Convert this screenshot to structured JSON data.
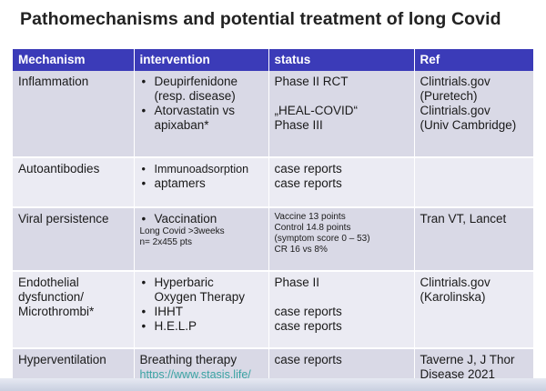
{
  "title": "Pathomechanisms and potential treatment of long Covid",
  "headers": [
    "Mechanism",
    "intervention",
    "status",
    "Ref"
  ],
  "rows": [
    {
      "mechanism": [
        "Inflammation"
      ],
      "interventions": [
        {
          "lines": [
            "Deupirfenidone",
            "(resp. disease)"
          ]
        },
        {
          "lines": [
            "Atorvastatin vs",
            "apixaban*"
          ]
        }
      ],
      "status": [
        "Phase II RCT",
        "",
        "„HEAL-COVID“",
        "Phase III"
      ],
      "ref": [
        "Clintrials.gov",
        "(Puretech)",
        "Clintrials.gov",
        "(Univ Cambridge)"
      ]
    },
    {
      "mechanism": [
        "Autoantibodies"
      ],
      "interventions": [
        {
          "lines": [
            "Immunoadsorption"
          ]
        },
        {
          "lines": [
            "aptamers"
          ]
        }
      ],
      "status": [
        "case reports",
        "case reports"
      ],
      "ref": []
    },
    {
      "mechanism": [
        "Viral persistence"
      ],
      "interventions": [
        {
          "lines": [
            "Vaccination"
          ]
        }
      ],
      "intervention_note": [
        "Long Covid >3weeks",
        "n= 2x455 pts"
      ],
      "status_small": [
        "Vaccine 13 points",
        "Control 14.8 points",
        "(symptom score 0 – 53)",
        "CR 16 vs 8%"
      ],
      "ref": [
        "Tran VT, Lancet"
      ]
    },
    {
      "mechanism": [
        "Endothelial",
        "dysfunction/",
        "Microthrombi*"
      ],
      "interventions": [
        {
          "lines": [
            "Hyperbaric",
            "Oxygen Therapy"
          ]
        },
        {
          "lines": [
            "IHHT"
          ]
        },
        {
          "lines": [
            "H.E.L.P"
          ]
        }
      ],
      "status": [
        "Phase II",
        "",
        "case reports",
        "case reports"
      ],
      "ref": [
        "Clintrials.gov",
        "(Karolinska)"
      ]
    },
    {
      "mechanism": [
        "Hyperventilation"
      ],
      "intervention_text": "Breathing therapy",
      "intervention_link": "https://www.stasis.life/",
      "status": [
        "case reports"
      ],
      "ref": [
        "Taverne J, J Thor",
        "Disease 2021"
      ]
    }
  ]
}
